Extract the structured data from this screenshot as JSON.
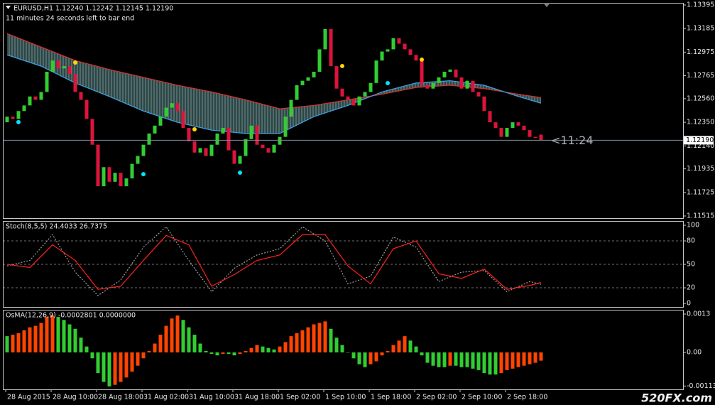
{
  "watermark": "520FX.com",
  "chart_data": [
    {
      "type": "candlestick",
      "title": "EURUSD,H1  1.12240 1.12242 1.12145 1.12190",
      "subtitle": "11 minutes 24 seconds left to bar end",
      "open": [
        1.1235,
        1.124,
        1.1238,
        1.1245,
        1.125,
        1.1258,
        1.1255,
        1.1262,
        1.128,
        1.129,
        1.1283,
        1.1285,
        1.1278,
        1.1262,
        1.1255,
        1.1238,
        1.1215,
        1.1178,
        1.1195,
        1.1182,
        1.119,
        1.1178,
        1.1185,
        1.1198,
        1.1205,
        1.1215,
        1.1225,
        1.1232,
        1.124,
        1.1248,
        1.1252,
        1.1245,
        1.123,
        1.1218,
        1.1208,
        1.1212,
        1.1205,
        1.1215,
        1.1225,
        1.123,
        1.121,
        1.1198,
        1.1205,
        1.122,
        1.1232,
        1.1215,
        1.1212,
        1.1208,
        1.1215,
        1.1222,
        1.124,
        1.1255,
        1.1268,
        1.1272,
        1.1275,
        1.128,
        1.13,
        1.1318,
        1.1285,
        1.1265,
        1.1258,
        1.1255,
        1.125,
        1.1258,
        1.1262,
        1.127,
        1.129,
        1.1298,
        1.13,
        1.131,
        1.1305,
        1.13,
        1.1295,
        1.129,
        1.1268,
        1.1265,
        1.127,
        1.1275,
        1.128,
        1.1282,
        1.1275,
        1.1265,
        1.1272,
        1.1262,
        1.1258,
        1.1245,
        1.1235,
        1.123,
        1.1222,
        1.123,
        1.1235,
        1.1232,
        1.1228,
        1.1222,
        1.1224
      ],
      "close": [
        1.124,
        1.1238,
        1.1245,
        1.125,
        1.1258,
        1.1255,
        1.1262,
        1.128,
        1.129,
        1.1283,
        1.1285,
        1.1278,
        1.1262,
        1.1255,
        1.1238,
        1.1215,
        1.1178,
        1.1195,
        1.1182,
        1.119,
        1.1178,
        1.1185,
        1.1198,
        1.1205,
        1.1215,
        1.1225,
        1.1232,
        1.124,
        1.1248,
        1.1252,
        1.1245,
        1.123,
        1.1218,
        1.1208,
        1.1212,
        1.1205,
        1.1215,
        1.1225,
        1.123,
        1.121,
        1.1198,
        1.1205,
        1.122,
        1.1232,
        1.1215,
        1.1212,
        1.1208,
        1.1215,
        1.1222,
        1.124,
        1.1255,
        1.1268,
        1.1272,
        1.1275,
        1.128,
        1.13,
        1.1318,
        1.1285,
        1.1265,
        1.1258,
        1.1255,
        1.125,
        1.1258,
        1.1262,
        1.127,
        1.129,
        1.1298,
        1.13,
        1.131,
        1.1305,
        1.13,
        1.1295,
        1.129,
        1.1268,
        1.1265,
        1.127,
        1.1275,
        1.128,
        1.1282,
        1.1275,
        1.1265,
        1.1272,
        1.1262,
        1.1258,
        1.1245,
        1.1235,
        1.123,
        1.1222,
        1.123,
        1.1235,
        1.1232,
        1.1228,
        1.1222,
        1.1221,
        1.1219
      ],
      "up_color": "#32cd32",
      "down_color": "#dc143c",
      "band_color": "#2f4f4f",
      "lines": [
        {
          "color": "#d03030",
          "x": [
            0,
            6,
            12,
            18,
            24,
            30,
            36,
            42,
            48,
            54,
            60,
            66,
            72,
            78,
            84,
            90,
            94
          ],
          "values": [
            1.1314,
            1.1302,
            1.129,
            1.1282,
            1.1275,
            1.1268,
            1.1262,
            1.1255,
            1.1247,
            1.125,
            1.1255,
            1.126,
            1.1266,
            1.1268,
            1.1265,
            1.126,
            1.1257
          ]
        },
        {
          "color": "#3aa0e0",
          "x": [
            0,
            6,
            12,
            18,
            24,
            30,
            36,
            42,
            48,
            54,
            60,
            66,
            72,
            78,
            84,
            90,
            94
          ],
          "values": [
            1.1295,
            1.1285,
            1.127,
            1.1258,
            1.1245,
            1.1235,
            1.1228,
            1.1225,
            1.1225,
            1.124,
            1.125,
            1.1262,
            1.127,
            1.1272,
            1.1268,
            1.1258,
            1.1252
          ]
        }
      ],
      "signals": [
        {
          "color": "#ffd700",
          "x": [
            12,
            33,
            59,
            73
          ],
          "values": [
            1.12882,
            1.12287,
            1.12851,
            1.12908
          ]
        },
        {
          "color": "#00e5ff",
          "x": [
            2,
            24,
            41,
            67
          ],
          "values": [
            1.12351,
            1.11888,
            1.11901,
            1.12699
          ]
        }
      ],
      "price_line": {
        "value": 1.1219,
        "label": "1.12190"
      },
      "timer": "<11:24",
      "ylim": [
        1.11496,
        1.13414
      ],
      "yticks": [
        1.13395,
        1.13185,
        1.12975,
        1.12765,
        {
          "value": 1.1256,
          "label": "1.12560"
        },
        {
          "value": 1.1235,
          "label": "1.12350"
        },
        {
          "value": 1.1214,
          "label": "1.12140"
        },
        1.11935,
        1.11725,
        1.11515
      ],
      "xticks": [
        {
          "value": 0,
          "label": "28 Aug 2015"
        },
        {
          "value": 8,
          "label": "28 Aug 10:00"
        },
        {
          "value": 16,
          "label": "28 Aug 18:00"
        },
        {
          "value": 24,
          "label": "31 Aug 02:00"
        },
        {
          "value": 32,
          "label": "31 Aug 10:00"
        },
        {
          "value": 40,
          "label": "31 Aug 18:00"
        },
        {
          "value": 48,
          "label": "1 Sep 02:00"
        },
        {
          "value": 56,
          "label": "1 Sep 10:00"
        },
        {
          "value": 64,
          "label": "1 Sep 18:00"
        },
        {
          "value": 72,
          "label": "2 Sep 02:00"
        },
        {
          "value": 80,
          "label": "2 Sep 10:00"
        },
        {
          "value": 88,
          "label": "2 Sep 18:00"
        }
      ]
    },
    {
      "type": "line",
      "title": "Stoch(8,5,5) 24.4033 26.7375",
      "x": [
        0,
        4,
        8,
        12,
        16,
        20,
        24,
        28,
        32,
        36,
        40,
        44,
        48,
        52,
        56,
        60,
        64,
        68,
        72,
        76,
        80,
        84,
        88,
        92,
        94
      ],
      "series": [
        {
          "color": "#a0a0a0",
          "dashed": true,
          "values": [
            48,
            55,
            88,
            40,
            10,
            30,
            72,
            98,
            55,
            15,
            45,
            62,
            70,
            98,
            80,
            25,
            35,
            85,
            72,
            28,
            40,
            42,
            15,
            28,
            24.4033
          ]
        },
        {
          "color": "#ff2020",
          "dashed": false,
          "values": [
            50,
            46,
            75,
            55,
            18,
            22,
            55,
            87,
            75,
            22,
            37,
            55,
            62,
            88,
            88,
            48,
            25,
            70,
            80,
            38,
            32,
            44,
            18,
            23,
            26.7375
          ]
        }
      ],
      "levels": [
        20,
        50,
        80
      ],
      "ylim": [
        -4.5,
        105.5
      ],
      "yticks": [
        0,
        20,
        50,
        80,
        100
      ]
    },
    {
      "type": "bar",
      "title": "OsMA(12,26,9) -0.0002801 0.0000000",
      "values": [
        0.00055,
        0.0006,
        0.00065,
        0.00075,
        0.00085,
        0.0009,
        0.001,
        0.0012,
        0.00125,
        0.0012,
        0.0011,
        0.00095,
        0.0008,
        0.0005,
        0.0002,
        -0.0002,
        -0.0007,
        -0.001,
        -0.00115,
        -0.0011,
        -0.001,
        -0.00085,
        -0.00065,
        -0.00045,
        -0.0002,
        5e-05,
        0.0003,
        0.0006,
        0.0009,
        0.00115,
        0.00125,
        0.0011,
        0.00085,
        0.0006,
        0.0003,
        5e-05,
        -5e-05,
        -0.0001,
        -5e-05,
        -5e-05,
        -0.0001,
        -5e-05,
        5e-05,
        0.00015,
        0.00025,
        0.0002,
        0.00015,
        0.0001,
        0.0002,
        0.00035,
        0.00055,
        0.00065,
        0.00075,
        0.00085,
        0.00095,
        0.001,
        0.00105,
        0.0008,
        0.0005,
        0.00025,
        0,
        -0.0002,
        -0.0004,
        -0.0005,
        -0.0004,
        -0.0003,
        -0.0001,
        5e-05,
        0.00025,
        0.0004,
        0.00055,
        0.0004,
        0.0002,
        -0.0001,
        -0.00035,
        -0.00045,
        -0.0005,
        -0.0005,
        -0.00045,
        -0.00045,
        -0.0005,
        -0.0005,
        -0.00055,
        -0.0006,
        -0.0007,
        -0.00075,
        -0.00075,
        -0.0007,
        -0.0006,
        -0.00055,
        -0.0005,
        -0.00045,
        -0.0004,
        -0.00035,
        -0.0002801
      ],
      "up_color": "#ff4500",
      "down_color": "#32cd32",
      "ylim": [
        -0.001252,
        0.001444
      ],
      "yticks": [
        -0.001138,
        {
          "value": 0,
          "label": "0.00"
        },
        0.0013
      ]
    }
  ]
}
